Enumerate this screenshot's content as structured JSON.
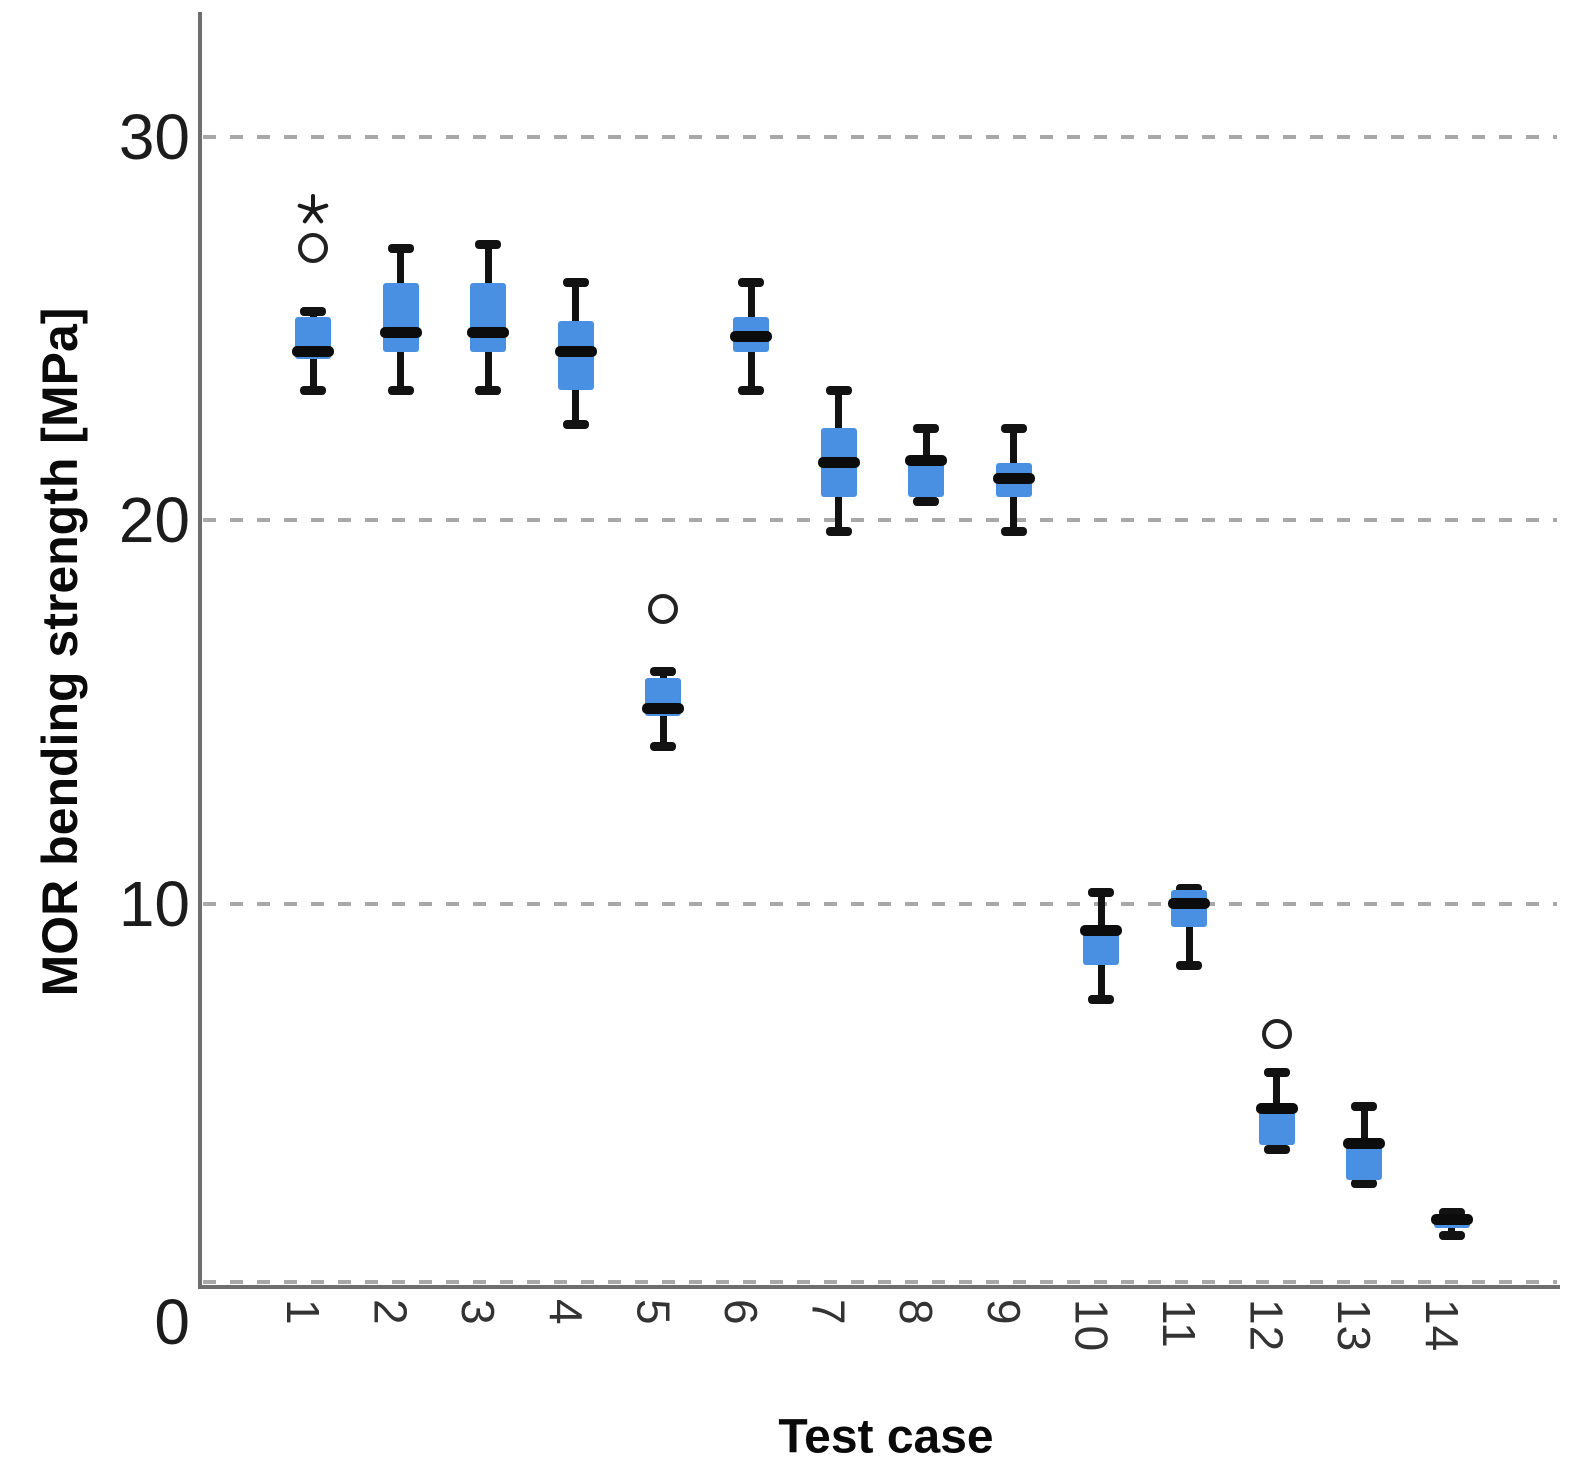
{
  "chart": {
    "y_axis_title": "MOR bending strength [MPa]",
    "x_axis_title": "Test case"
  },
  "chart_data": {
    "type": "boxplot",
    "title": "",
    "xlabel": "Test case",
    "ylabel": "MOR bending strength [MPa]",
    "ylim": [
      0,
      33.3
    ],
    "grid": "horizontal dashed gridlines at y ticks",
    "legend_position": "none",
    "yticks": [
      {
        "label": "0",
        "value": 0
      },
      {
        "label": "10",
        "value": 10
      },
      {
        "label": "20",
        "value": 20
      },
      {
        "label": "30",
        "value": 30
      }
    ],
    "categories": [
      "1",
      "2",
      "3",
      "4",
      "5",
      "6",
      "7",
      "8",
      "9",
      "10",
      "11",
      "12",
      "13",
      "14"
    ],
    "boxes": [
      {
        "category": "1",
        "whisker_low": 23.4,
        "q1": 24.2,
        "median": 24.4,
        "q3": 25.3,
        "whisker_high": 25.45,
        "outliers": [
          {
            "type": "circle",
            "value": 27.1
          },
          {
            "type": "star",
            "value": 28.1
          }
        ]
      },
      {
        "category": "2",
        "whisker_low": 23.4,
        "q1": 24.4,
        "median": 24.9,
        "q3": 26.2,
        "whisker_high": 27.1,
        "outliers": []
      },
      {
        "category": "3",
        "whisker_low": 23.4,
        "q1": 24.4,
        "median": 24.9,
        "q3": 26.2,
        "whisker_high": 27.2,
        "outliers": []
      },
      {
        "category": "4",
        "whisker_low": 22.5,
        "q1": 23.4,
        "median": 24.4,
        "q3": 25.2,
        "whisker_high": 26.2,
        "outliers": []
      },
      {
        "category": "5",
        "whisker_low": 14.1,
        "q1": 14.9,
        "median": 15.1,
        "q3": 15.9,
        "whisker_high": 16.05,
        "outliers": [
          {
            "type": "circle",
            "value": 17.7
          }
        ]
      },
      {
        "category": "6",
        "whisker_low": 23.4,
        "q1": 24.4,
        "median": 24.8,
        "q3": 25.3,
        "whisker_high": 26.2,
        "outliers": []
      },
      {
        "category": "7",
        "whisker_low": 19.7,
        "q1": 20.6,
        "median": 21.5,
        "q3": 22.4,
        "whisker_high": 23.4,
        "outliers": []
      },
      {
        "category": "8",
        "whisker_low": 20.5,
        "q1": 20.6,
        "median": 21.55,
        "q3": 21.7,
        "whisker_high": 22.4,
        "outliers": []
      },
      {
        "category": "9",
        "whisker_low": 19.7,
        "q1": 20.6,
        "median": 21.1,
        "q3": 21.5,
        "whisker_high": 22.4,
        "outliers": []
      },
      {
        "category": "10",
        "whisker_low": 7.5,
        "q1": 8.4,
        "median": 9.3,
        "q3": 9.45,
        "whisker_high": 10.3,
        "outliers": []
      },
      {
        "category": "11",
        "whisker_low": 8.4,
        "q1": 9.4,
        "median": 10.0,
        "q3": 10.35,
        "whisker_high": 10.4,
        "outliers": []
      },
      {
        "category": "12",
        "whisker_low": 3.6,
        "q1": 3.7,
        "median": 4.65,
        "q3": 4.75,
        "whisker_high": 5.6,
        "outliers": [
          {
            "type": "circle",
            "value": 6.6
          }
        ]
      },
      {
        "category": "13",
        "whisker_low": 2.7,
        "q1": 2.8,
        "median": 3.75,
        "q3": 3.85,
        "whisker_high": 4.7,
        "outliers": []
      },
      {
        "category": "14",
        "whisker_low": 1.35,
        "q1": 1.55,
        "median": 1.75,
        "q3": 1.85,
        "whisker_high": 1.95,
        "outliers": []
      }
    ],
    "markers": {
      "circle_icon_meaning": "outlier",
      "star_icon_meaning": "extreme outlier"
    },
    "colors": {
      "box_fill": "#4a90e2",
      "median_and_whiskers": "#111111",
      "gridline": "#a8a8a8",
      "axis_line": "#6e6e6e",
      "text": "#1c1c1c"
    }
  }
}
